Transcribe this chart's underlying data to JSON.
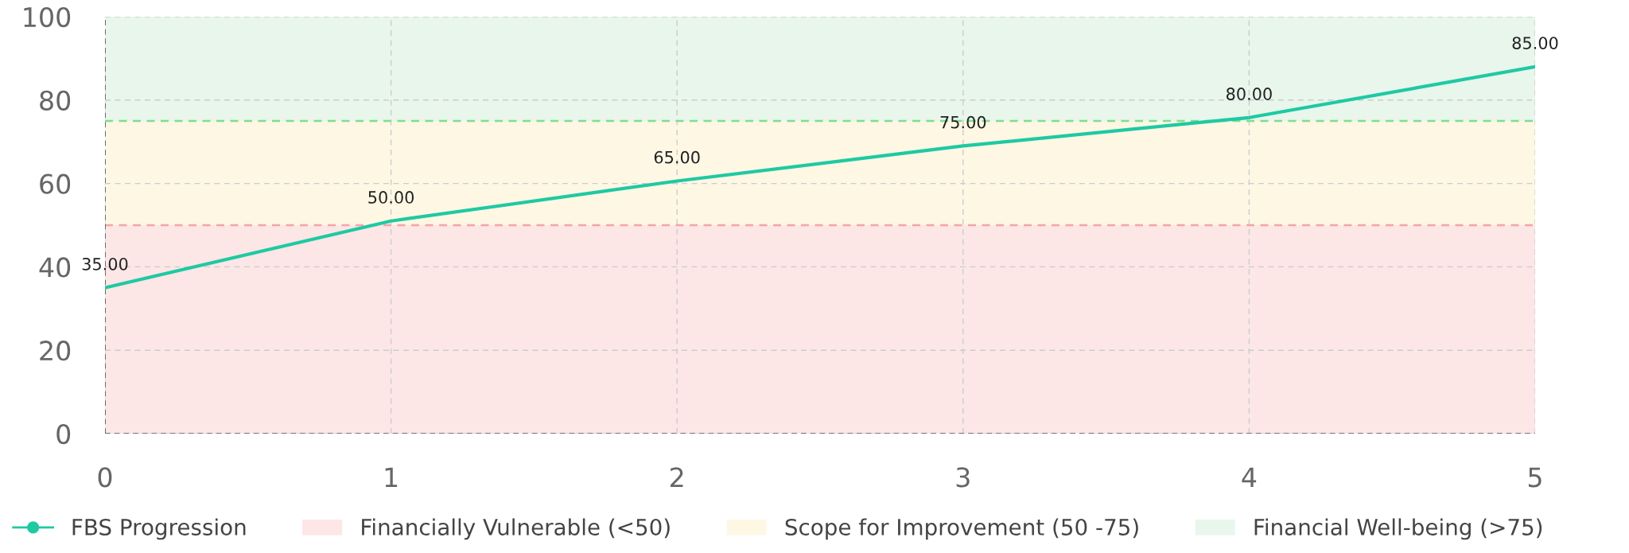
{
  "chart_data": {
    "type": "line",
    "x": [
      0,
      1,
      2,
      3,
      4,
      5
    ],
    "series": [
      {
        "name": "FBS Progression",
        "color": "#1fc9a2",
        "values": [
          35,
          51,
          60.6,
          69,
          75.8,
          88
        ]
      }
    ],
    "annotations": [
      {
        "text": "35.00",
        "x": 0,
        "y": 35
      },
      {
        "text": "50.00",
        "x": 1,
        "y": 51
      },
      {
        "text": "65.00",
        "x": 2,
        "y": 60.6
      },
      {
        "text": "75.00",
        "x": 3,
        "y": 69
      },
      {
        "text": "80.00",
        "x": 4,
        "y": 75.8
      },
      {
        "text": "85.00",
        "x": 5,
        "y": 88
      }
    ],
    "xlim": [
      0,
      5
    ],
    "xticks": [
      0,
      1,
      2,
      3,
      4,
      5
    ],
    "ylim": [
      0,
      100
    ],
    "yticks": [
      0,
      20,
      40,
      60,
      80,
      100
    ],
    "bands": [
      {
        "axis": "y",
        "from": 0,
        "to": 50,
        "label": "Financially Vulnerable (<50)",
        "color": "#fce6e6"
      },
      {
        "axis": "y",
        "from": 50,
        "to": 75,
        "label": "Scope for Improvement (50 -75)",
        "color": "#fdf7e4"
      },
      {
        "axis": "y",
        "from": 75,
        "to": 100,
        "label": "Financial Well-being (>75)",
        "color": "#e8f6ec"
      }
    ],
    "ref_lines": [
      {
        "axis": "y",
        "value": 50,
        "color": "#f4a5a5",
        "line_style": "dashed"
      },
      {
        "axis": "y",
        "value": 75,
        "color": "#7dde8e",
        "line_style": "dashed"
      }
    ],
    "grid": true,
    "legend": "bottom",
    "line_style": "solid"
  }
}
